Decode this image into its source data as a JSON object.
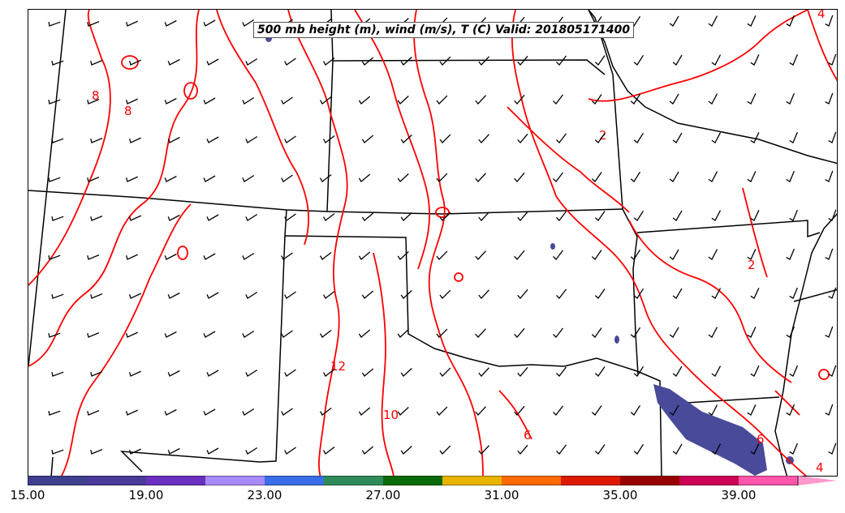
{
  "title": "500 mb height (m), wind (m/s), T (C) Valid: 201805171400",
  "contour_labels": [
    "8",
    "8",
    "2",
    "2",
    "12",
    "10",
    "6",
    "6",
    "4",
    "4"
  ],
  "colorbar": {
    "tick_labels": [
      "15.00",
      "19.00",
      "23.00",
      "27.00",
      "31.00",
      "35.00",
      "39.00"
    ],
    "colors": [
      "#3f3f8f",
      "#4a3a9a",
      "#6a2fbf",
      "#a88aff",
      "#3a6ee8",
      "#2e8b5a",
      "#086a08",
      "#e8b400",
      "#ff6a00",
      "#dd1a00",
      "#990000",
      "#cc0055",
      "#ff55aa",
      "#ff99cc"
    ]
  },
  "colors": {
    "temperature_contour": "#ff0000",
    "wind_fill": "#4a4a9a",
    "borders": "#000000"
  }
}
